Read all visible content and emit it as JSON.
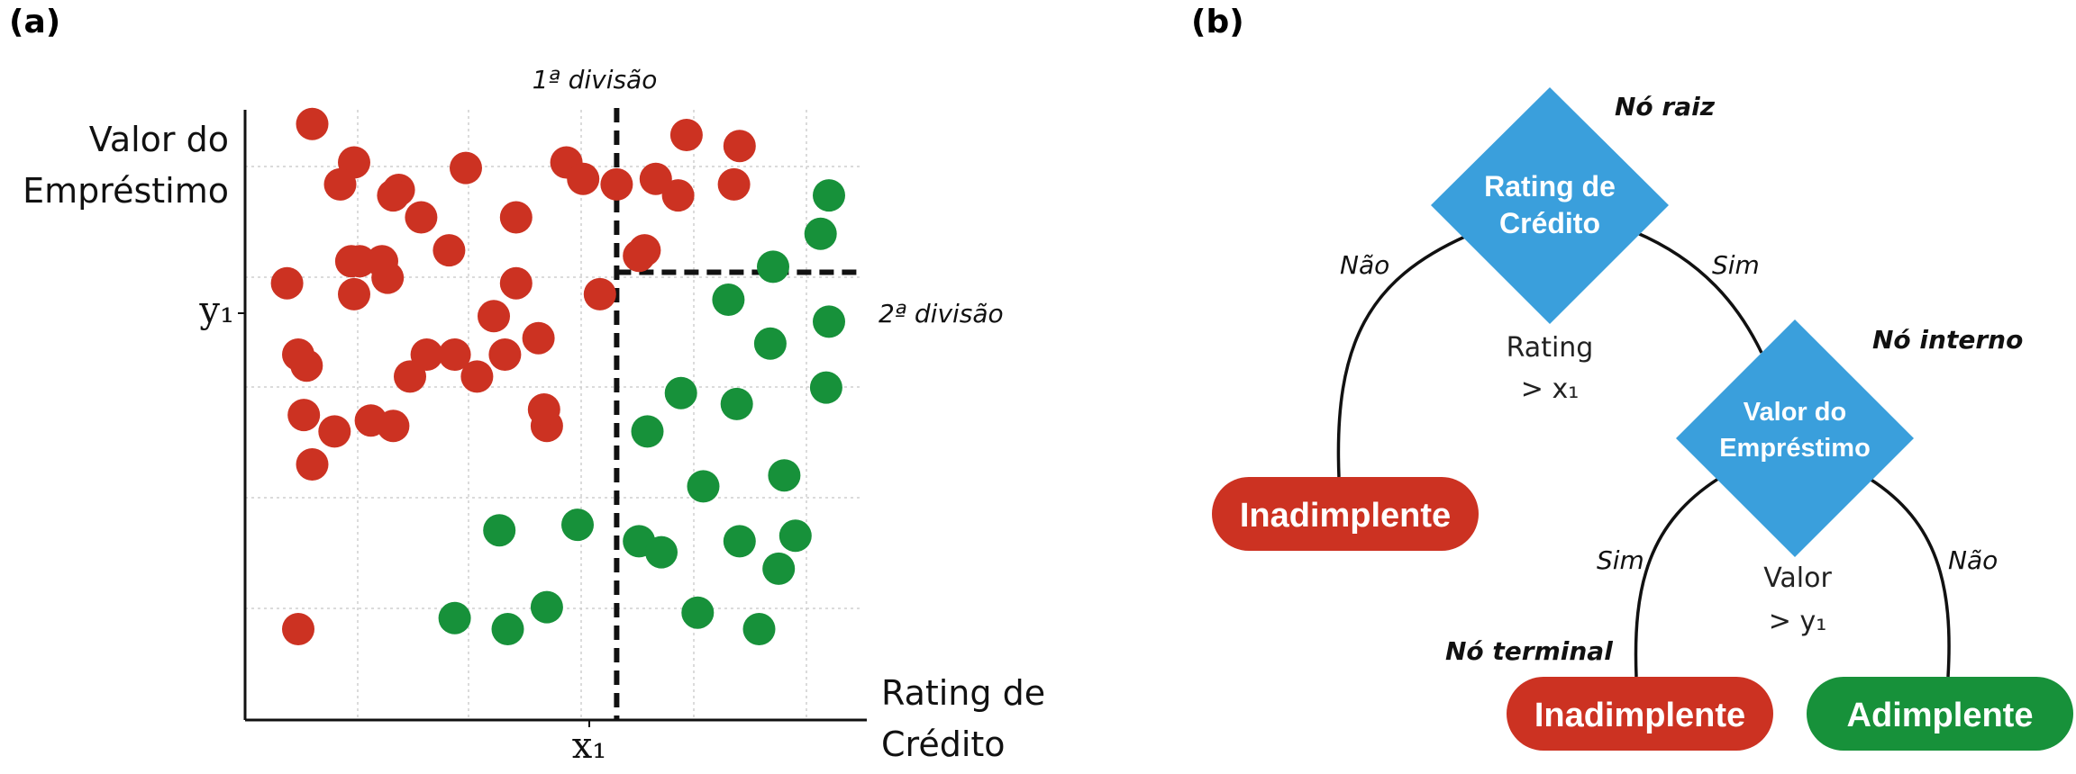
{
  "panel_a": {
    "label": "(a)",
    "y_axis_title": [
      "Valor do",
      "Empréstimo"
    ],
    "x_axis_title": [
      "Rating de",
      "Crédito"
    ],
    "y_tick": "y₁",
    "x_tick": "x₁",
    "split1_label": "1ª divisão",
    "split2_label": "2ª divisão"
  },
  "panel_b": {
    "label": "(b)",
    "root_node_label": "Nó raiz",
    "internal_node_label": "Nó interno",
    "terminal_node_label": "Nó terminal",
    "root_text": [
      "Rating de",
      "Crédito"
    ],
    "internal_text": [
      "Valor do",
      "Empréstimo"
    ],
    "leaf_left": "Inadimplente",
    "leaf_mid": "Inadimplente",
    "leaf_right": "Adimplente",
    "edge_root_left": "Não",
    "edge_root_right": "Sim",
    "edge_internal_left": "Sim",
    "edge_internal_right": "Não",
    "cond_root": [
      "Rating",
      "> x₁"
    ],
    "cond_internal": [
      "Valor",
      "> y₁"
    ]
  },
  "colors": {
    "red": "#cc3222",
    "green": "#17913a",
    "diamond": "#3a9fdc"
  },
  "chart_data": {
    "type": "scatter",
    "xlabel": "Rating de Crédito",
    "ylabel": "Valor do Empréstimo",
    "xlim": [
      0,
      10
    ],
    "ylim": [
      0,
      10
    ],
    "split_x": 6.2,
    "split_y": 7.5,
    "series": [
      {
        "color": "#cc3222",
        "points": [
          [
            0.75,
            10.2
          ],
          [
            1.5,
            9.5
          ],
          [
            3.5,
            9.4
          ],
          [
            5.3,
            9.5
          ],
          [
            2.3,
            9.0
          ],
          [
            5.6,
            9.2
          ],
          [
            2.2,
            8.9
          ],
          [
            2.7,
            8.5
          ],
          [
            0.3,
            7.3
          ],
          [
            1.45,
            7.7
          ],
          [
            5.9,
            7.1
          ],
          [
            6.2,
            9.1
          ],
          [
            2.8,
            6.0
          ],
          [
            2.1,
            7.4
          ],
          [
            1.6,
            7.7
          ],
          [
            7.45,
            10.0
          ],
          [
            8.4,
            9.8
          ],
          [
            8.3,
            9.1
          ],
          [
            7.3,
            8.9
          ],
          [
            6.7,
            7.9
          ],
          [
            2.0,
            7.7
          ],
          [
            1.5,
            7.1
          ],
          [
            0.5,
            6.0
          ],
          [
            0.65,
            5.8
          ],
          [
            2.5,
            5.6
          ],
          [
            2.2,
            4.7
          ],
          [
            0.5,
            1.0
          ],
          [
            1.15,
            4.6
          ],
          [
            1.8,
            4.8
          ],
          [
            0.75,
            4.0
          ],
          [
            4.95,
            4.7
          ],
          [
            6.9,
            9.2
          ],
          [
            0.6,
            4.9
          ],
          [
            1.25,
            9.1
          ],
          [
            4.4,
            7.3
          ],
          [
            4.8,
            6.3
          ],
          [
            4.2,
            6.0
          ],
          [
            3.7,
            5.6
          ],
          [
            4.0,
            6.7
          ],
          [
            6.6,
            7.8
          ],
          [
            3.2,
            7.9
          ],
          [
            4.4,
            8.5
          ],
          [
            3.3,
            6.0
          ],
          [
            4.9,
            5.0
          ]
        ]
      },
      {
        "color": "#17913a",
        "points": [
          [
            10.0,
            8.9
          ],
          [
            9.85,
            8.2
          ],
          [
            9.0,
            7.6
          ],
          [
            8.2,
            7.0
          ],
          [
            8.95,
            6.2
          ],
          [
            10.0,
            6.6
          ],
          [
            7.35,
            5.3
          ],
          [
            8.35,
            5.1
          ],
          [
            9.95,
            5.4
          ],
          [
            6.75,
            4.6
          ],
          [
            7.75,
            3.6
          ],
          [
            9.2,
            3.8
          ],
          [
            6.6,
            2.6
          ],
          [
            7.0,
            2.4
          ],
          [
            8.4,
            2.6
          ],
          [
            9.1,
            2.1
          ],
          [
            9.4,
            2.7
          ],
          [
            7.65,
            1.3
          ],
          [
            8.75,
            1.0
          ],
          [
            4.1,
            2.8
          ],
          [
            5.5,
            2.9
          ],
          [
            3.3,
            1.2
          ],
          [
            4.25,
            1.0
          ],
          [
            4.95,
            1.4
          ]
        ]
      }
    ]
  }
}
